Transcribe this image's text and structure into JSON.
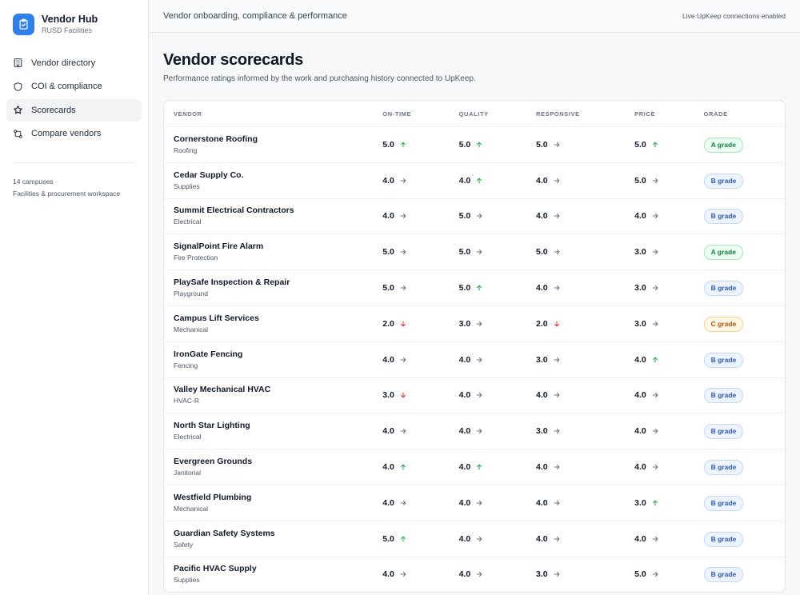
{
  "brand": {
    "name": "Vendor Hub",
    "subtitle": "RUSD Facilities",
    "logo_icon": "clipboard-check-icon",
    "accent": "#2f80ed"
  },
  "sidebar": {
    "items": [
      {
        "label": "Vendor directory",
        "icon": "building-icon",
        "active": false
      },
      {
        "label": "COI & compliance",
        "icon": "shield-icon",
        "active": false
      },
      {
        "label": "Scorecards",
        "icon": "star-icon",
        "active": true
      },
      {
        "label": "Compare vendors",
        "icon": "compare-arrows-icon",
        "active": false
      }
    ],
    "meta_line1": "14 campuses",
    "meta_line2": "Facilities & procurement workspace"
  },
  "topbar": {
    "title": "Vendor onboarding, compliance & performance",
    "status": "Live UpKeep connections enabled"
  },
  "page": {
    "title": "Vendor scorecards",
    "subtitle": "Performance ratings informed by the work and purchasing history connected to UpKeep."
  },
  "table": {
    "headers": {
      "vendor": "VENDOR",
      "on_time": "ON-TIME",
      "quality": "QUALITY",
      "responsive": "RESPONSIVE",
      "price": "PRICE",
      "grade": "GRADE"
    },
    "rows": [
      {
        "name": "Cornerstone Roofing",
        "category": "Roofing",
        "on_time": "5.0",
        "on_time_trend": "up",
        "quality": "5.0",
        "quality_trend": "up",
        "responsive": "5.0",
        "responsive_trend": "flat",
        "price": "5.0",
        "price_trend": "up",
        "grade": "A grade",
        "grade_level": "A"
      },
      {
        "name": "Cedar Supply Co.",
        "category": "Supplies",
        "on_time": "4.0",
        "on_time_trend": "flat",
        "quality": "4.0",
        "quality_trend": "up",
        "responsive": "4.0",
        "responsive_trend": "flat",
        "price": "5.0",
        "price_trend": "flat",
        "grade": "B grade",
        "grade_level": "B"
      },
      {
        "name": "Summit Electrical Contractors",
        "category": "Electrical",
        "on_time": "4.0",
        "on_time_trend": "flat",
        "quality": "5.0",
        "quality_trend": "flat",
        "responsive": "4.0",
        "responsive_trend": "flat",
        "price": "4.0",
        "price_trend": "flat",
        "grade": "B grade",
        "grade_level": "B"
      },
      {
        "name": "SignalPoint Fire Alarm",
        "category": "Fire Protection",
        "on_time": "5.0",
        "on_time_trend": "flat",
        "quality": "5.0",
        "quality_trend": "flat",
        "responsive": "5.0",
        "responsive_trend": "flat",
        "price": "3.0",
        "price_trend": "flat",
        "grade": "A grade",
        "grade_level": "A"
      },
      {
        "name": "PlaySafe Inspection & Repair",
        "category": "Playground",
        "on_time": "5.0",
        "on_time_trend": "flat",
        "quality": "5.0",
        "quality_trend": "up",
        "responsive": "4.0",
        "responsive_trend": "flat",
        "price": "3.0",
        "price_trend": "flat",
        "grade": "B grade",
        "grade_level": "B"
      },
      {
        "name": "Campus Lift Services",
        "category": "Mechanical",
        "on_time": "2.0",
        "on_time_trend": "down",
        "quality": "3.0",
        "quality_trend": "flat",
        "responsive": "2.0",
        "responsive_trend": "down",
        "price": "3.0",
        "price_trend": "flat",
        "grade": "C grade",
        "grade_level": "C"
      },
      {
        "name": "IronGate Fencing",
        "category": "Fencing",
        "on_time": "4.0",
        "on_time_trend": "flat",
        "quality": "4.0",
        "quality_trend": "flat",
        "responsive": "3.0",
        "responsive_trend": "flat",
        "price": "4.0",
        "price_trend": "up",
        "grade": "B grade",
        "grade_level": "B"
      },
      {
        "name": "Valley Mechanical HVAC",
        "category": "HVAC-R",
        "on_time": "3.0",
        "on_time_trend": "down",
        "quality": "4.0",
        "quality_trend": "flat",
        "responsive": "4.0",
        "responsive_trend": "flat",
        "price": "4.0",
        "price_trend": "flat",
        "grade": "B grade",
        "grade_level": "B"
      },
      {
        "name": "North Star Lighting",
        "category": "Electrical",
        "on_time": "4.0",
        "on_time_trend": "flat",
        "quality": "4.0",
        "quality_trend": "flat",
        "responsive": "3.0",
        "responsive_trend": "flat",
        "price": "4.0",
        "price_trend": "flat",
        "grade": "B grade",
        "grade_level": "B"
      },
      {
        "name": "Evergreen Grounds",
        "category": "Janitorial",
        "on_time": "4.0",
        "on_time_trend": "up",
        "quality": "4.0",
        "quality_trend": "up",
        "responsive": "4.0",
        "responsive_trend": "flat",
        "price": "4.0",
        "price_trend": "flat",
        "grade": "B grade",
        "grade_level": "B"
      },
      {
        "name": "Westfield Plumbing",
        "category": "Mechanical",
        "on_time": "4.0",
        "on_time_trend": "flat",
        "quality": "4.0",
        "quality_trend": "flat",
        "responsive": "4.0",
        "responsive_trend": "flat",
        "price": "3.0",
        "price_trend": "up",
        "grade": "B grade",
        "grade_level": "B"
      },
      {
        "name": "Guardian Safety Systems",
        "category": "Safety",
        "on_time": "5.0",
        "on_time_trend": "up",
        "quality": "4.0",
        "quality_trend": "flat",
        "responsive": "4.0",
        "responsive_trend": "flat",
        "price": "4.0",
        "price_trend": "flat",
        "grade": "B grade",
        "grade_level": "B"
      },
      {
        "name": "Pacific HVAC Supply",
        "category": "Supplies",
        "on_time": "4.0",
        "on_time_trend": "flat",
        "quality": "4.0",
        "quality_trend": "flat",
        "responsive": "3.0",
        "responsive_trend": "flat",
        "price": "5.0",
        "price_trend": "flat",
        "grade": "B grade",
        "grade_level": "B"
      }
    ]
  },
  "trend_colors": {
    "up": "#16a34a",
    "down": "#dc2626",
    "flat": "#6b7280"
  }
}
